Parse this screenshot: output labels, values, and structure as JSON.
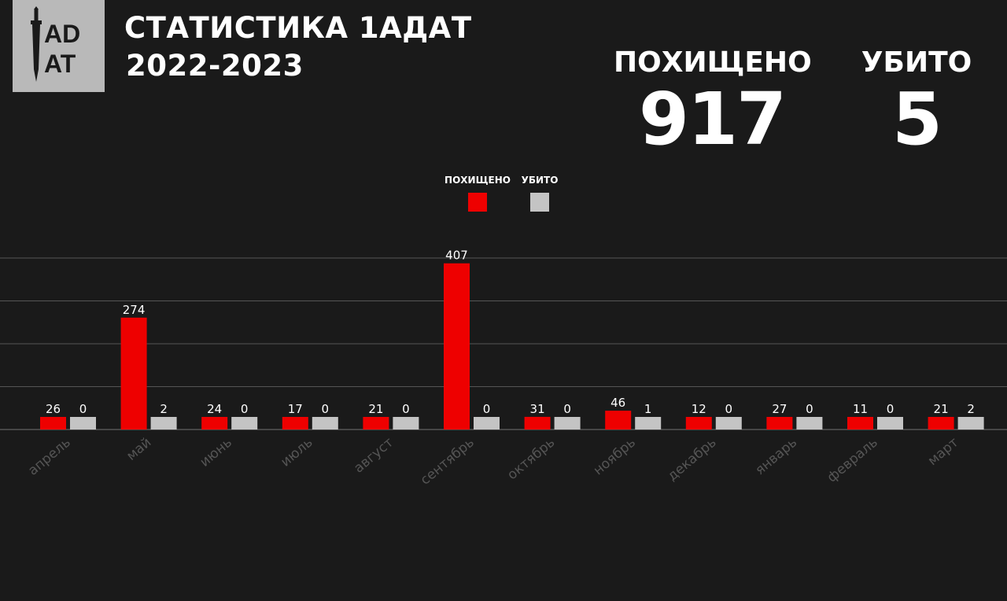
{
  "logo": {
    "text_top": "AD",
    "text_bottom": "AT"
  },
  "header": {
    "title": "СТАТИСТИКА 1АДАТ",
    "subtitle": "2022-2023"
  },
  "totals": {
    "kidnapped_label": "ПОХИЩЕНО",
    "kidnapped_value": "917",
    "killed_label": "УБИТО",
    "killed_value": "5"
  },
  "colors": {
    "background": "#1a1a1a",
    "kidnapped": "#ee0000",
    "killed": "#c4c4c4",
    "axis_label": "#555555",
    "grid": "#555555"
  },
  "chart_data": {
    "type": "bar",
    "legend": [
      "ПОХИЩЕНО",
      "УБИТО"
    ],
    "legend_position": "top-center",
    "grid": true,
    "categories": [
      "апрель",
      "май",
      "июнь",
      "июль",
      "август",
      "сентябрь",
      "октябрь",
      "ноябрь",
      "декабрь",
      "январь",
      "февраль",
      "март"
    ],
    "series": [
      {
        "name": "ПОХИЩЕНО",
        "values": [
          26,
          274,
          24,
          17,
          21,
          407,
          31,
          46,
          12,
          27,
          11,
          21
        ]
      },
      {
        "name": "УБИТО",
        "values": [
          0,
          2,
          0,
          0,
          0,
          0,
          0,
          1,
          0,
          0,
          0,
          2
        ]
      }
    ]
  }
}
